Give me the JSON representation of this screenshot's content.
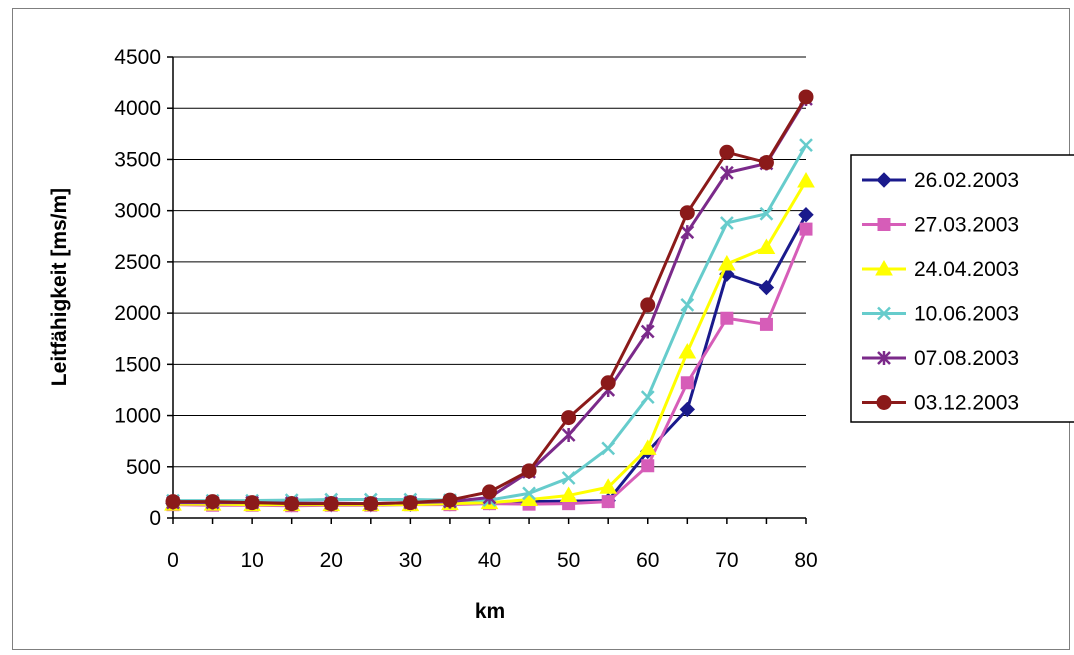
{
  "chart_data": {
    "type": "line",
    "title": "",
    "xlabel": "km",
    "ylabel": "Leitfähigkeit [ms/m]",
    "xlim": [
      0,
      80
    ],
    "ylim": [
      0,
      4500
    ],
    "x_ticks": [
      0,
      10,
      20,
      30,
      40,
      50,
      60,
      70,
      80
    ],
    "y_ticks": [
      0,
      500,
      1000,
      1500,
      2000,
      2500,
      3000,
      3500,
      4000,
      4500
    ],
    "grid": "horizontal",
    "legend_position": "right",
    "x": [
      0,
      5,
      10,
      15,
      20,
      25,
      30,
      35,
      40,
      45,
      50,
      55,
      60,
      65,
      70,
      75,
      80
    ],
    "series": [
      {
        "name": "26.02.2003",
        "color": "#1a1a8c",
        "marker": "diamond",
        "values": [
          140,
          140,
          140,
          130,
          130,
          130,
          135,
          140,
          150,
          160,
          165,
          170,
          650,
          1060,
          2380,
          2250,
          2960
        ]
      },
      {
        "name": "27.03.2003",
        "color": "#d65db8",
        "marker": "square",
        "values": [
          130,
          125,
          125,
          120,
          125,
          125,
          130,
          130,
          140,
          135,
          140,
          160,
          510,
          1320,
          1950,
          1890,
          2820
        ]
      },
      {
        "name": "24.04.2003",
        "color": "#ffff00",
        "marker": "triangle",
        "values": [
          135,
          135,
          130,
          130,
          130,
          130,
          130,
          140,
          150,
          180,
          220,
          300,
          680,
          1620,
          2480,
          2640,
          3290
        ]
      },
      {
        "name": "10.06.2003",
        "color": "#66cccc",
        "marker": "x",
        "values": [
          170,
          170,
          170,
          175,
          180,
          180,
          180,
          175,
          175,
          240,
          390,
          680,
          1180,
          2080,
          2880,
          2970,
          3640
        ]
      },
      {
        "name": "07.08.2003",
        "color": "#7b2a8a",
        "marker": "star",
        "values": [
          150,
          150,
          150,
          145,
          145,
          140,
          150,
          160,
          200,
          450,
          810,
          1250,
          1820,
          2790,
          3370,
          3460,
          4090
        ]
      },
      {
        "name": "03.12.2003",
        "color": "#8b1a1a",
        "marker": "circle",
        "values": [
          160,
          160,
          150,
          140,
          140,
          140,
          150,
          175,
          255,
          460,
          980,
          1320,
          2080,
          2980,
          3570,
          3470,
          4110
        ]
      }
    ]
  }
}
